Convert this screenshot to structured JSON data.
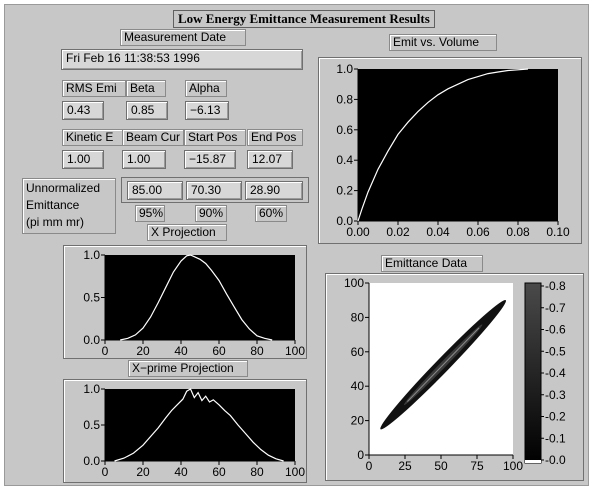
{
  "title": "Low Energy Emittance Measurement Results",
  "measurement_date": {
    "label": "Measurement Date",
    "value": "Fri Feb 16 11:38:53 1996"
  },
  "rms": {
    "label": "RMS Emi",
    "value": "0.43"
  },
  "beta": {
    "label": "Beta",
    "value": "0.85"
  },
  "alpha": {
    "label": "Alpha",
    "value": "−6.13"
  },
  "kinetic": {
    "label": "Kinetic E",
    "value": "1.00"
  },
  "beam_current": {
    "label": "Beam Cur",
    "value": "1.00"
  },
  "start_pos": {
    "label": "Start Pos",
    "value": "−15.87"
  },
  "end_pos": {
    "label": "End Pos",
    "value": "12.07"
  },
  "unnormalized": {
    "label_lines": [
      "Unnormalized",
      "Emittance",
      "(pi mm mr)"
    ],
    "values": [
      "85.00",
      "70.30",
      "28.90"
    ],
    "percents": [
      "95%",
      "90%",
      "60%"
    ]
  },
  "x_projection_label": "X Projection",
  "xprime_projection_label": "X−prime Projection",
  "emit_volume_label": "Emit vs. Volume",
  "emittance_data_label": "Emittance Data",
  "colors": {
    "panel": "#c7c7c7",
    "plot_bg": "#000000",
    "trace": "#ffffff",
    "ellipse": "#111111"
  },
  "chart_data": [
    {
      "id": "emit-vs-volume",
      "type": "line",
      "title": "Emit vs. Volume",
      "xlim": [
        0.0,
        0.1
      ],
      "ylim": [
        0.0,
        1.0
      ],
      "xticks": [
        "0.00",
        "0.02",
        "0.04",
        "0.06",
        "0.08",
        "0.10"
      ],
      "yticks": [
        "0.0",
        "0.2",
        "0.4",
        "0.6",
        "0.8",
        "1.0"
      ],
      "series": [
        {
          "x": [
            0.0,
            0.002,
            0.005,
            0.01,
            0.015,
            0.02,
            0.025,
            0.03,
            0.035,
            0.04,
            0.045,
            0.05,
            0.055,
            0.06,
            0.065,
            0.07,
            0.075,
            0.08,
            0.085
          ],
          "y": [
            0.0,
            0.08,
            0.19,
            0.34,
            0.46,
            0.57,
            0.65,
            0.72,
            0.78,
            0.83,
            0.87,
            0.9,
            0.93,
            0.95,
            0.97,
            0.98,
            0.99,
            0.995,
            1.0
          ]
        }
      ],
      "grid": false
    },
    {
      "id": "x-projection",
      "type": "line",
      "title": "X Projection",
      "xlim": [
        0,
        100
      ],
      "ylim": [
        0.0,
        1.0
      ],
      "xticks": [
        "0",
        "20",
        "40",
        "60",
        "80",
        "100"
      ],
      "yticks": [
        "0.0",
        "0.5",
        "1.0"
      ],
      "series": [
        {
          "x": [
            8,
            12,
            16,
            20,
            24,
            28,
            32,
            36,
            40,
            43,
            45,
            47,
            50,
            53,
            56,
            60,
            64,
            68,
            72,
            76,
            80,
            84,
            88
          ],
          "y": [
            0.0,
            0.02,
            0.06,
            0.14,
            0.27,
            0.44,
            0.62,
            0.8,
            0.93,
            0.99,
            1.0,
            0.98,
            0.95,
            0.9,
            0.82,
            0.7,
            0.54,
            0.39,
            0.24,
            0.13,
            0.05,
            0.02,
            0.0
          ]
        }
      ],
      "grid": false
    },
    {
      "id": "xprime-projection",
      "type": "line",
      "title": "X−prime Projection",
      "xlim": [
        0,
        100
      ],
      "ylim": [
        0.0,
        1.0
      ],
      "xticks": [
        "0",
        "20",
        "40",
        "60",
        "80",
        "100"
      ],
      "yticks": [
        "0.0",
        "0.5",
        "1.0"
      ],
      "series": [
        {
          "x": [
            5,
            10,
            15,
            20,
            24,
            28,
            32,
            35,
            38,
            41,
            43,
            45,
            47,
            49,
            51,
            53,
            55,
            57,
            60,
            63,
            66,
            70,
            74,
            78,
            82,
            86,
            90,
            94
          ],
          "y": [
            0.0,
            0.04,
            0.11,
            0.22,
            0.34,
            0.46,
            0.6,
            0.7,
            0.78,
            0.86,
            0.97,
            1.0,
            0.88,
            0.95,
            0.84,
            0.9,
            0.82,
            0.85,
            0.78,
            0.7,
            0.63,
            0.5,
            0.38,
            0.26,
            0.16,
            0.08,
            0.03,
            0.0
          ]
        }
      ],
      "grid": false
    },
    {
      "id": "emittance-data",
      "type": "heatmap",
      "title": "Emittance Data",
      "xlim": [
        0,
        100
      ],
      "ylim": [
        0,
        100
      ],
      "xticks": [
        "0",
        "25",
        "50",
        "75",
        "100"
      ],
      "yticks": [
        "0",
        "20",
        "40",
        "60",
        "80",
        "100"
      ],
      "ellipse": {
        "from": [
          8,
          15
        ],
        "to": [
          95,
          90
        ]
      },
      "colorbar": {
        "range": [
          0.0,
          0.8
        ],
        "ticks": [
          "-0.8",
          "-0.7",
          "-0.6",
          "-0.5",
          "-0.4",
          "-0.3",
          "-0.2",
          "-0.1",
          "-0.0"
        ]
      }
    }
  ]
}
